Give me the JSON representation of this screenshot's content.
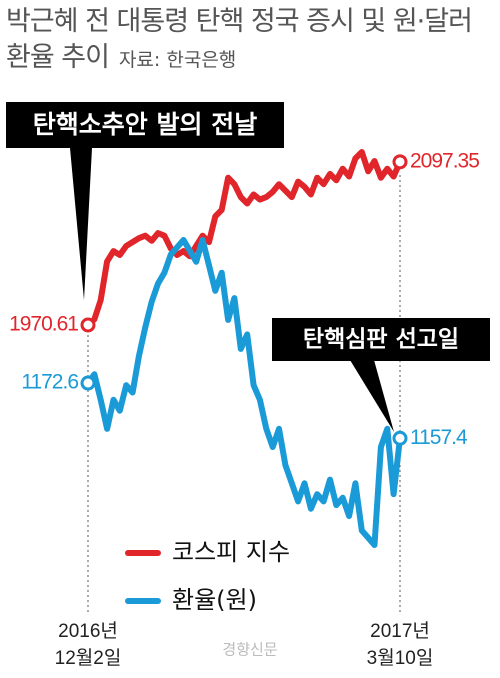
{
  "chart_data": {
    "type": "line",
    "title": "박근혜 전 대통령 탄핵 정국 증시 및 원·달러 환율 추이",
    "source": "자료: 한국은행",
    "annotations": [
      "탄핵소추안 발의 전날",
      "탄핵심판 선고일"
    ],
    "watermark": "경향신문",
    "categories": [
      "2016년\n12월2일",
      null,
      null,
      null,
      null,
      null,
      null,
      null,
      null,
      null,
      null,
      null,
      null,
      null,
      null,
      null,
      null,
      null,
      null,
      null,
      null,
      null,
      null,
      null,
      null,
      null,
      null,
      null,
      null,
      null,
      null,
      null,
      null,
      null,
      null,
      null,
      null,
      null,
      null,
      null,
      null,
      null,
      null,
      null,
      null,
      null,
      null,
      null,
      null,
      "2017년\n3월10일"
    ],
    "series": [
      {
        "name": "코스피 지수",
        "color": "#e0262b",
        "values": [
          1970.61,
          1975,
          1990,
          2020,
          2028,
          2025,
          2032,
          2035,
          2038,
          2040,
          2036,
          2042,
          2040,
          2030,
          2025,
          2028,
          2024,
          2032,
          2040,
          2035,
          2055,
          2060,
          2085,
          2080,
          2070,
          2065,
          2072,
          2068,
          2070,
          2074,
          2080,
          2075,
          2070,
          2082,
          2078,
          2072,
          2085,
          2080,
          2088,
          2083,
          2092,
          2086,
          2100,
          2105,
          2090,
          2098,
          2085,
          2092,
          2086,
          2097.35
        ]
      },
      {
        "name": "환율(원)",
        "color": "#1a9ad7",
        "values": [
          1172.6,
          1175,
          1168,
          1160,
          1168,
          1165,
          1172,
          1170,
          1180,
          1188,
          1195,
          1200,
          1203,
          1208,
          1210,
          1212,
          1209,
          1206,
          1212,
          1205,
          1198,
          1203,
          1190,
          1196,
          1182,
          1186,
          1172,
          1168,
          1160,
          1155,
          1160,
          1150,
          1145,
          1140,
          1145,
          1138,
          1142,
          1140,
          1146,
          1139,
          1141,
          1136,
          1145,
          1132,
          1130,
          1128,
          1155,
          1160,
          1142,
          1157.4
        ]
      }
    ]
  }
}
